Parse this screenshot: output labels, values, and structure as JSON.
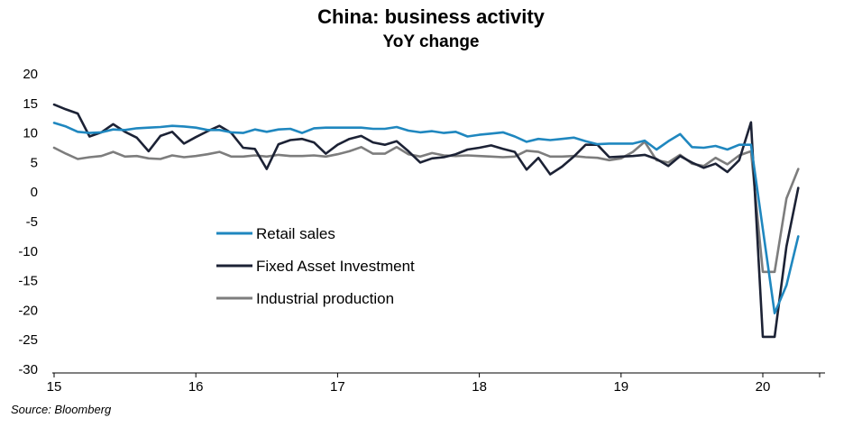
{
  "chart_data": {
    "type": "line",
    "title": "China: business activity",
    "subtitle": "YoY change",
    "xlabel": "",
    "ylabel": "",
    "ylim": [
      -30,
      20
    ],
    "yticks": [
      20,
      15,
      10,
      5,
      0,
      -5,
      -10,
      -15,
      -20,
      -25,
      -30
    ],
    "xticks": [
      "15",
      "16",
      "17",
      "18",
      "19",
      "20"
    ],
    "x_start": "2015-01",
    "grid": false,
    "legend_position": "center-left",
    "series": [
      {
        "name": "Retail sales",
        "color": "#1f87bf",
        "values": [
          11.7,
          11.1,
          10.2,
          10.0,
          10.1,
          10.6,
          10.5,
          10.8,
          10.9,
          11.0,
          11.2,
          11.1,
          10.9,
          10.5,
          10.5,
          10.1,
          10.0,
          10.6,
          10.2,
          10.6,
          10.7,
          10.0,
          10.8,
          10.9,
          10.9,
          10.9,
          10.9,
          10.7,
          10.7,
          11.0,
          10.4,
          10.1,
          10.3,
          10.0,
          10.2,
          9.4,
          9.7,
          9.9,
          10.1,
          9.4,
          8.5,
          9.0,
          8.8,
          9.0,
          9.2,
          8.6,
          8.1,
          8.2,
          8.2,
          8.2,
          8.7,
          7.2,
          8.6,
          9.8,
          7.6,
          7.5,
          7.8,
          7.2,
          8.0,
          8.0,
          -20.5,
          -15.8,
          -7.5
        ],
        "x_offsets": [
          0,
          1,
          2,
          3,
          4,
          5,
          6,
          7,
          8,
          9,
          10,
          11,
          12,
          13,
          14,
          15,
          16,
          17,
          18,
          19,
          20,
          21,
          22,
          23,
          24,
          25,
          26,
          27,
          28,
          29,
          30,
          31,
          32,
          33,
          34,
          35,
          36,
          37,
          38,
          39,
          40,
          41,
          42,
          43,
          44,
          45,
          46,
          47,
          48,
          49,
          50,
          51,
          52,
          53,
          54,
          55,
          56,
          57,
          58,
          59,
          61,
          62,
          63
        ]
      },
      {
        "name": "Fixed Asset Investment",
        "color": "#1c2235",
        "values": [
          14.8,
          14.0,
          13.3,
          9.4,
          10.1,
          11.5,
          10.2,
          9.2,
          6.9,
          9.5,
          10.2,
          8.2,
          9.3,
          10.3,
          11.2,
          10.0,
          7.5,
          7.3,
          3.9,
          8.1,
          8.8,
          9.0,
          8.4,
          6.5,
          8.0,
          9.0,
          9.5,
          8.4,
          8.0,
          8.6,
          6.9,
          5.0,
          5.7,
          5.9,
          6.4,
          7.2,
          7.5,
          7.9,
          7.3,
          6.8,
          3.8,
          5.8,
          3.0,
          4.3,
          6.0,
          8.0,
          8.0,
          5.9,
          6.0,
          6.1,
          6.3,
          5.6,
          4.4,
          6.1,
          5.0,
          4.1,
          4.8,
          3.4,
          5.4,
          11.8,
          -24.5,
          -24.5,
          -9.2,
          0.7
        ],
        "x_offsets": [
          0,
          1,
          2,
          3,
          4,
          5,
          6,
          7,
          8,
          9,
          10,
          11,
          12,
          13,
          14,
          15,
          16,
          17,
          18,
          19,
          20,
          21,
          22,
          23,
          24,
          25,
          26,
          27,
          28,
          29,
          30,
          31,
          32,
          33,
          34,
          35,
          36,
          37,
          38,
          39,
          40,
          41,
          42,
          43,
          44,
          45,
          46,
          47,
          48,
          49,
          50,
          51,
          52,
          53,
          54,
          55,
          56,
          57,
          58,
          59,
          60,
          61,
          62,
          63
        ]
      },
      {
        "name": "Industrial production",
        "color": "#7d7d7d",
        "values": [
          7.5,
          6.5,
          5.6,
          5.9,
          6.1,
          6.8,
          6.0,
          6.1,
          5.7,
          5.6,
          6.2,
          5.9,
          6.1,
          6.4,
          6.8,
          6.0,
          6.0,
          6.2,
          6.0,
          6.3,
          6.1,
          6.1,
          6.2,
          6.0,
          6.4,
          6.9,
          7.6,
          6.5,
          6.5,
          7.6,
          6.4,
          6.0,
          6.6,
          6.2,
          6.1,
          6.2,
          6.1,
          6.0,
          5.9,
          6.0,
          7.0,
          6.8,
          6.0,
          6.0,
          6.1,
          5.9,
          5.8,
          5.4,
          5.7,
          6.8,
          8.5,
          5.4,
          5.0,
          6.3,
          4.8,
          4.4,
          5.8,
          4.7,
          6.2,
          6.9,
          -13.5,
          -13.5,
          -1.1,
          3.9
        ],
        "x_offsets": [
          0,
          1,
          2,
          3,
          4,
          5,
          6,
          7,
          8,
          9,
          10,
          11,
          12,
          13,
          14,
          15,
          16,
          17,
          18,
          19,
          20,
          21,
          22,
          23,
          24,
          25,
          26,
          27,
          28,
          29,
          30,
          31,
          32,
          33,
          34,
          35,
          36,
          37,
          38,
          39,
          40,
          41,
          42,
          43,
          44,
          45,
          46,
          47,
          48,
          49,
          50,
          51,
          52,
          53,
          54,
          55,
          56,
          57,
          58,
          59,
          60,
          61,
          62,
          63
        ]
      }
    ]
  },
  "source": "Source: Bloomberg"
}
